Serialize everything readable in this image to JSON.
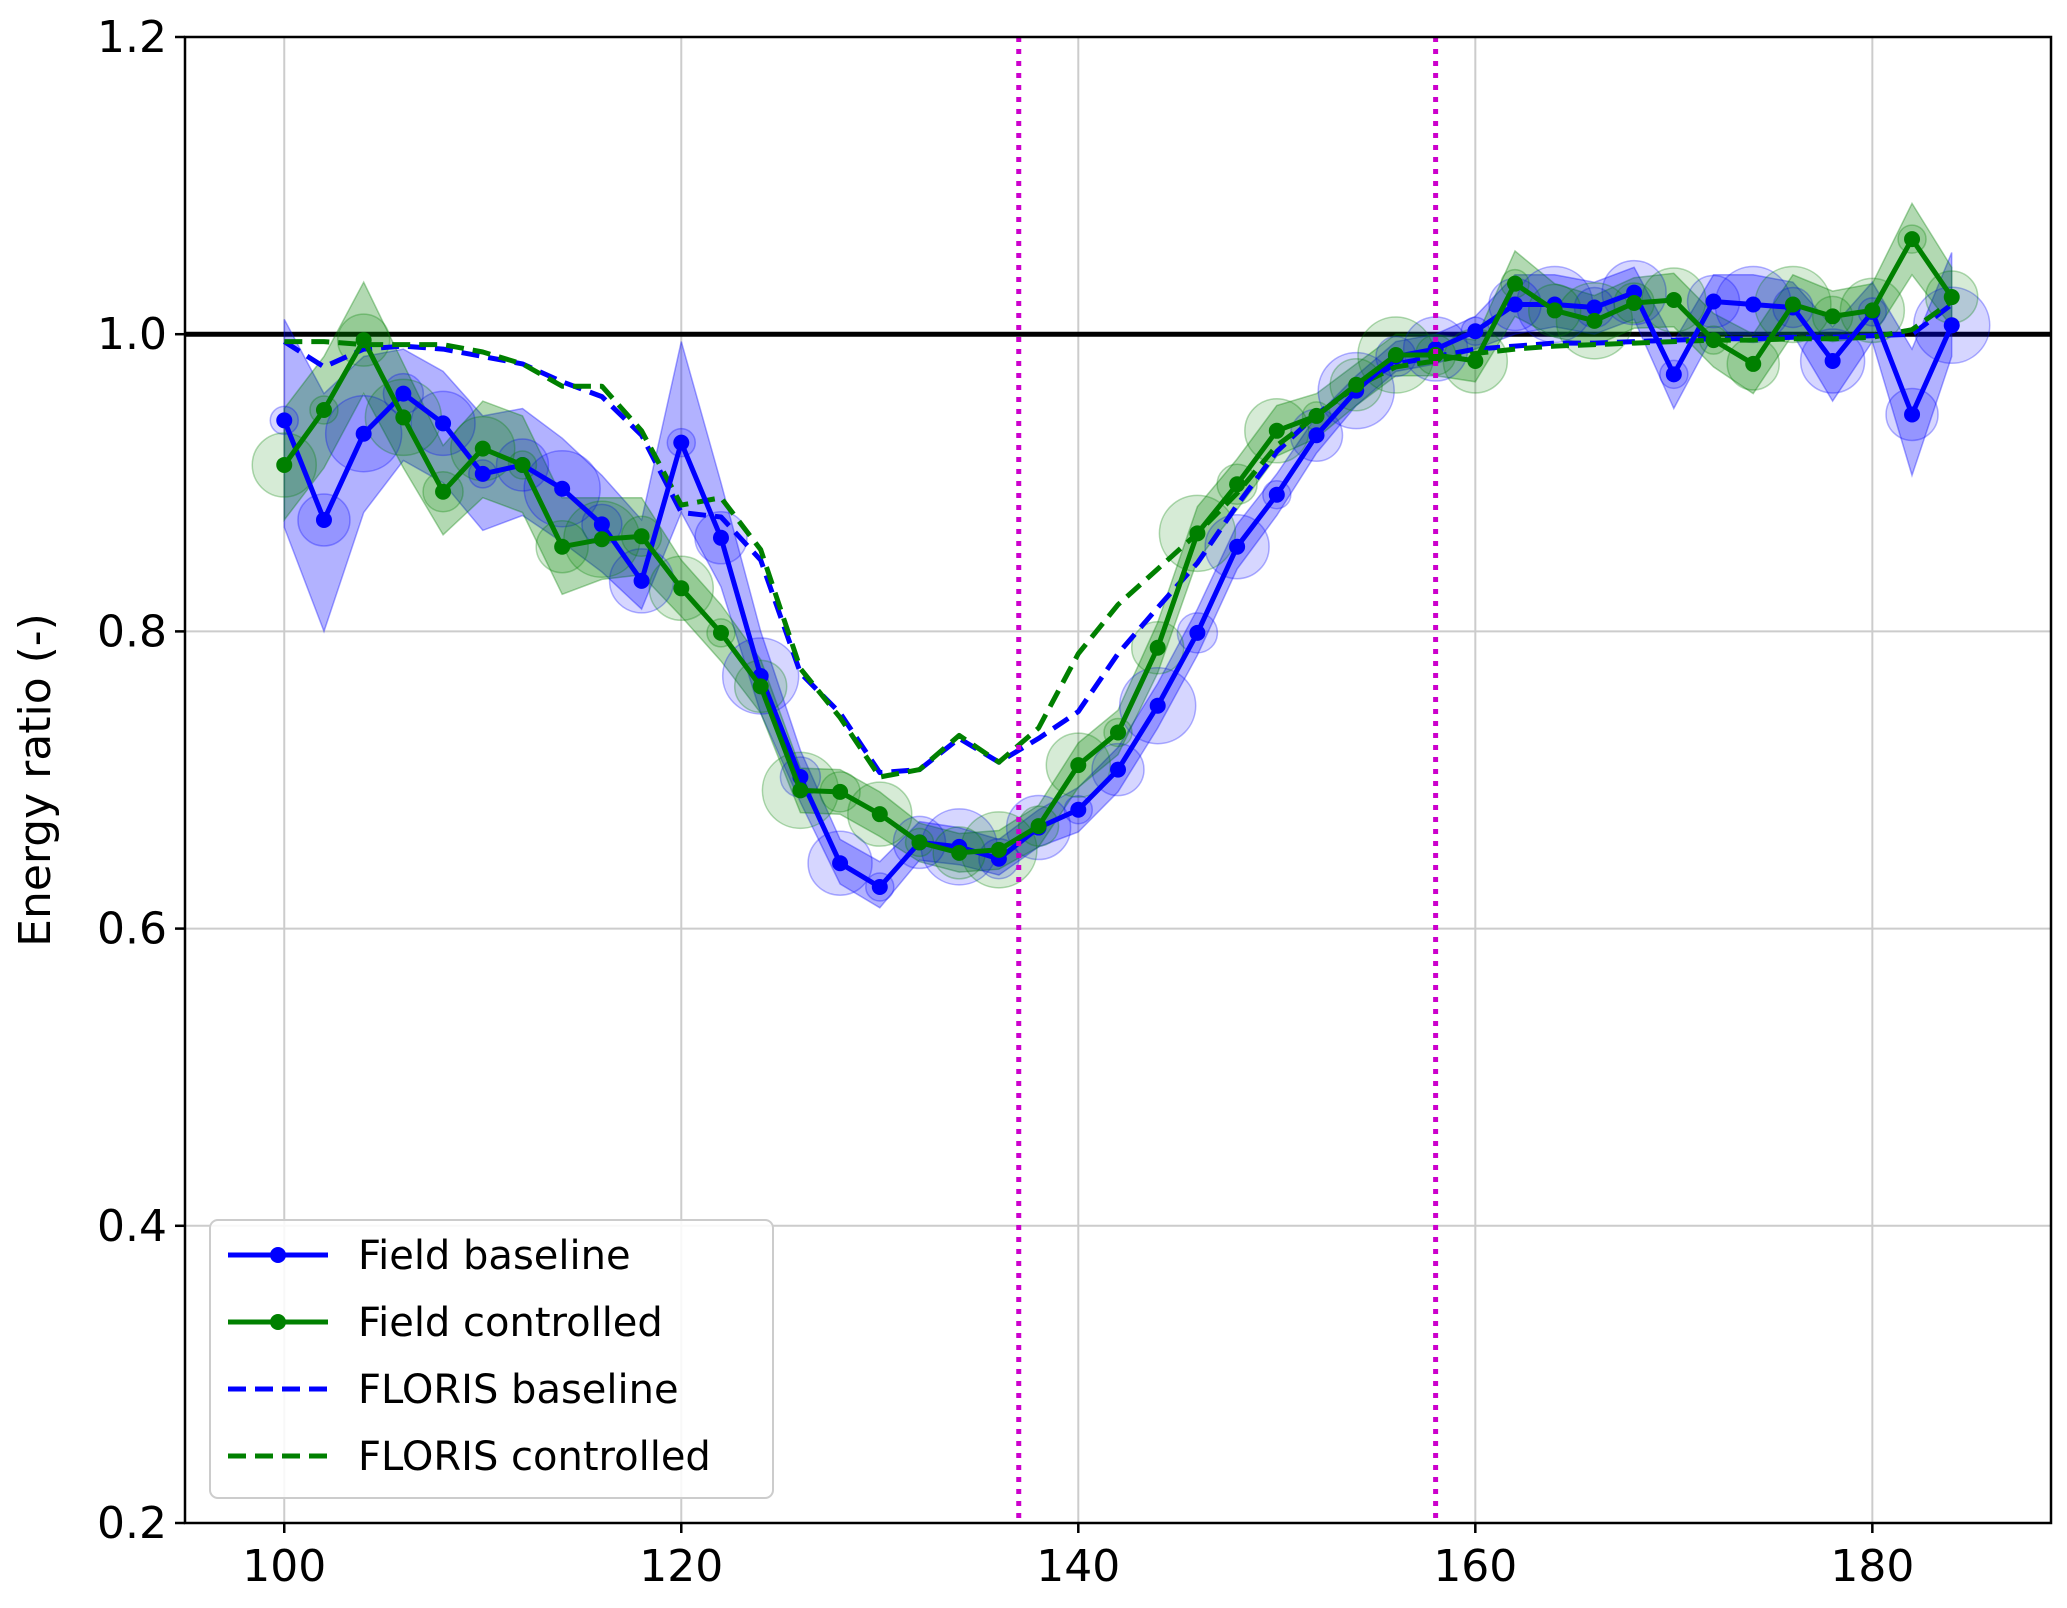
{
  "chart_data": {
    "type": "line",
    "title": "",
    "xlabel": "",
    "ylabel": "Energy ratio (-)",
    "xlim": [
      95,
      189
    ],
    "ylim": [
      0.2,
      1.2
    ],
    "xticks": [
      100,
      120,
      140,
      160,
      180
    ],
    "yticks": [
      0.2,
      0.4,
      0.6,
      0.8,
      1.0,
      1.2
    ],
    "xtick_labels": [
      "100",
      "120",
      "140",
      "160",
      "180"
    ],
    "ytick_labels": [
      "0.2",
      "0.4",
      "0.6",
      "0.8",
      "1.0",
      "1.2"
    ],
    "grid": true,
    "legend_position": "lower-left",
    "reference_line": {
      "y": 1.0,
      "color": "#000000"
    },
    "vertical_lines": [
      {
        "x": 137,
        "color": "#cc00cc",
        "style": "dotted"
      },
      {
        "x": 158,
        "color": "#cc00cc",
        "style": "dotted"
      }
    ],
    "x": [
      100,
      102,
      104,
      106,
      108,
      110,
      112,
      114,
      116,
      118,
      120,
      122,
      124,
      126,
      128,
      130,
      132,
      134,
      136,
      138,
      140,
      142,
      144,
      146,
      148,
      150,
      152,
      154,
      156,
      158,
      160,
      162,
      164,
      166,
      168,
      170,
      172,
      174,
      176,
      178,
      180,
      182,
      184
    ],
    "series": [
      {
        "name": "Field baseline",
        "color": "#0000ff",
        "style": "solid-marker",
        "values": [
          0.942,
          0.875,
          0.933,
          0.96,
          0.94,
          0.906,
          0.912,
          0.896,
          0.872,
          0.834,
          0.927,
          0.863,
          0.77,
          0.702,
          0.644,
          0.628,
          0.658,
          0.655,
          0.647,
          0.668,
          0.68,
          0.707,
          0.75,
          0.799,
          0.857,
          0.892,
          0.932,
          0.962,
          0.985,
          0.99,
          1.002,
          1.02,
          1.02,
          1.018,
          1.028,
          0.973,
          1.022,
          1.02,
          1.018,
          0.982,
          1.015,
          0.946,
          1.006
        ],
        "band_lower": [
          0.87,
          0.8,
          0.88,
          0.915,
          0.9,
          0.868,
          0.878,
          0.86,
          0.84,
          0.815,
          0.88,
          0.83,
          0.745,
          0.685,
          0.63,
          0.614,
          0.646,
          0.643,
          0.636,
          0.655,
          0.665,
          0.692,
          0.735,
          0.784,
          0.842,
          0.878,
          0.92,
          0.952,
          0.975,
          0.98,
          0.99,
          1.0,
          1.005,
          1.0,
          1.01,
          0.95,
          1.0,
          1.0,
          1.0,
          0.955,
          0.995,
          0.905,
          0.985
        ],
        "band_upper": [
          1.01,
          0.96,
          0.985,
          0.99,
          0.975,
          0.945,
          0.95,
          0.93,
          0.905,
          0.875,
          0.995,
          0.9,
          0.8,
          0.72,
          0.66,
          0.645,
          0.672,
          0.668,
          0.66,
          0.68,
          0.695,
          0.722,
          0.765,
          0.815,
          0.872,
          0.906,
          0.945,
          0.972,
          0.995,
          1.0,
          1.012,
          1.04,
          1.04,
          1.035,
          1.045,
          0.995,
          1.04,
          1.04,
          1.035,
          1.005,
          1.035,
          0.99,
          1.055
        ]
      },
      {
        "name": "Field controlled",
        "color": "#008000",
        "style": "solid-marker",
        "values": [
          0.912,
          0.949,
          0.996,
          0.944,
          0.894,
          0.923,
          0.912,
          0.857,
          0.862,
          0.864,
          0.829,
          0.799,
          0.763,
          0.693,
          0.692,
          0.677,
          0.658,
          0.651,
          0.653,
          0.669,
          0.71,
          0.732,
          0.789,
          0.866,
          0.899,
          0.935,
          0.945,
          0.966,
          0.986,
          0.986,
          0.982,
          1.034,
          1.016,
          1.009,
          1.021,
          1.023,
          0.996,
          0.98,
          1.02,
          1.012,
          1.016,
          1.064,
          1.025
        ],
        "band_lower": [
          0.875,
          0.91,
          0.96,
          0.91,
          0.865,
          0.89,
          0.88,
          0.825,
          0.835,
          0.838,
          0.81,
          0.78,
          0.745,
          0.678,
          0.677,
          0.662,
          0.645,
          0.638,
          0.64,
          0.655,
          0.695,
          0.717,
          0.772,
          0.848,
          0.882,
          0.918,
          0.93,
          0.952,
          0.972,
          0.972,
          0.968,
          1.012,
          0.998,
          0.992,
          1.004,
          1.005,
          0.978,
          0.96,
          1.0,
          0.995,
          0.998,
          1.04,
          1.005
        ],
        "band_upper": [
          0.95,
          0.985,
          1.035,
          0.98,
          0.925,
          0.955,
          0.945,
          0.89,
          0.89,
          0.89,
          0.848,
          0.818,
          0.781,
          0.708,
          0.707,
          0.692,
          0.671,
          0.664,
          0.666,
          0.683,
          0.725,
          0.747,
          0.806,
          0.884,
          0.916,
          0.952,
          0.96,
          0.98,
          1.0,
          1.0,
          0.996,
          1.056,
          1.034,
          1.026,
          1.038,
          1.041,
          1.014,
          1.0,
          1.04,
          1.029,
          1.034,
          1.088,
          1.045
        ]
      },
      {
        "name": "FLORIS baseline",
        "color": "#0000ff",
        "style": "dashed",
        "values": [
          0.995,
          0.978,
          0.99,
          0.992,
          0.99,
          0.985,
          0.98,
          0.968,
          0.958,
          0.932,
          0.88,
          0.877,
          0.848,
          0.772,
          0.745,
          0.705,
          0.707,
          0.728,
          0.712,
          0.728,
          0.746,
          0.785,
          0.816,
          0.846,
          0.885,
          0.921,
          0.946,
          0.965,
          0.98,
          0.985,
          0.99,
          0.992,
          0.994,
          0.994,
          0.995,
          0.996,
          0.997,
          0.997,
          0.998,
          0.998,
          0.999,
          1.0,
          1.02
        ]
      },
      {
        "name": "FLORIS controlled",
        "color": "#008000",
        "style": "dashed",
        "values": [
          0.995,
          0.995,
          0.993,
          0.993,
          0.993,
          0.988,
          0.98,
          0.965,
          0.965,
          0.935,
          0.885,
          0.89,
          0.855,
          0.775,
          0.742,
          0.702,
          0.707,
          0.73,
          0.712,
          0.735,
          0.785,
          0.818,
          0.842,
          0.866,
          0.893,
          0.925,
          0.945,
          0.965,
          0.978,
          0.982,
          0.987,
          0.99,
          0.992,
          0.993,
          0.994,
          0.995,
          0.996,
          0.996,
          0.997,
          0.997,
          0.998,
          1.003,
          1.022
        ]
      }
    ]
  }
}
